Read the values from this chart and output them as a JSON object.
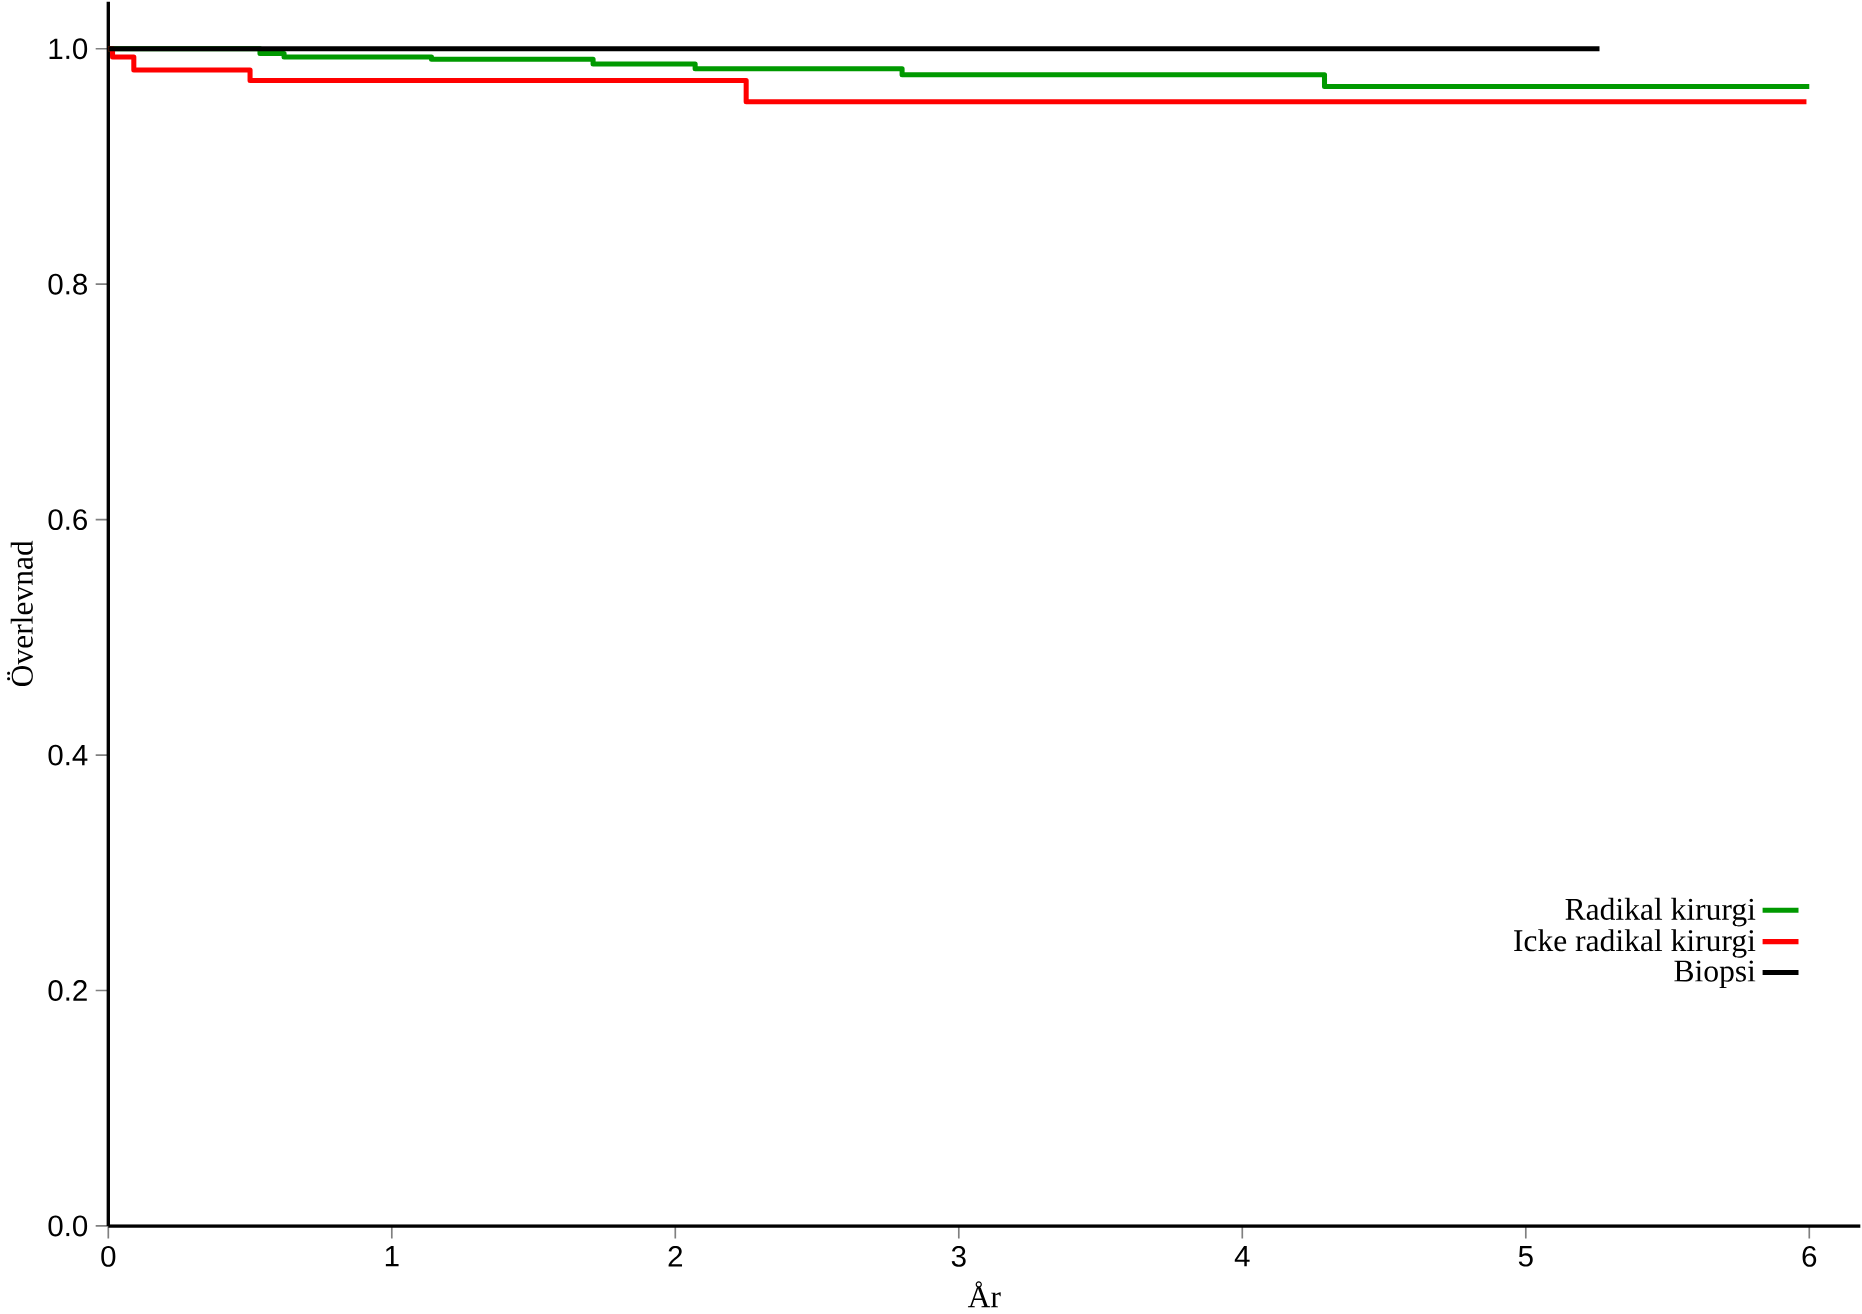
{
  "chart_data": {
    "type": "step",
    "xlabel": "År",
    "ylabel": "Överlevnad",
    "xlim": [
      0,
      6.18
    ],
    "ylim": [
      0,
      1.04
    ],
    "xticks": [
      0,
      1,
      2,
      3,
      4,
      5,
      6
    ],
    "yticks": [
      {
        "value": 0,
        "label": "0.0"
      },
      {
        "value": 0.2,
        "label": "0.2"
      },
      {
        "value": 0.4,
        "label": "0.4"
      },
      {
        "value": 0.6,
        "label": "0.6"
      },
      {
        "value": 0.8,
        "label": "0.8"
      },
      {
        "value": 1,
        "label": "1.0"
      }
    ],
    "grid": false,
    "legend": "right",
    "line_style": "solid",
    "series": [
      {
        "name": "Radikal kirurgi",
        "color": "#009900",
        "x": [
          0,
          0.535,
          0.62,
          1.14,
          1.71,
          2.07,
          2.8,
          4.29,
          6.0
        ],
        "values": [
          1.0,
          0.996,
          0.993,
          0.991,
          0.987,
          0.983,
          0.978,
          0.968,
          0.968
        ]
      },
      {
        "name": "Icke radikal kirurgi",
        "color": "#ff0000",
        "x": [
          0,
          0.015,
          0.09,
          0.5,
          2.25,
          5.99
        ],
        "values": [
          1.0,
          0.993,
          0.982,
          0.973,
          0.955,
          0.955
        ]
      },
      {
        "name": "Biopsi",
        "color": "#000000",
        "x": [
          0,
          5.26
        ],
        "values": [
          1.0,
          1.0
        ]
      }
    ]
  }
}
